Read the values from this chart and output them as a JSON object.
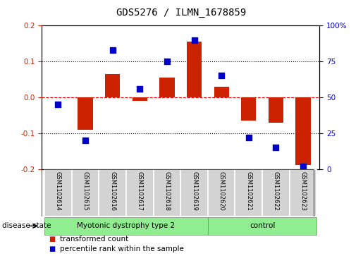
{
  "title": "GDS5276 / ILMN_1678859",
  "samples": [
    "GSM1102614",
    "GSM1102615",
    "GSM1102616",
    "GSM1102617",
    "GSM1102618",
    "GSM1102619",
    "GSM1102620",
    "GSM1102621",
    "GSM1102622",
    "GSM1102623"
  ],
  "red_bars": [
    0.0,
    -0.09,
    0.065,
    -0.01,
    0.055,
    0.155,
    0.03,
    -0.065,
    -0.07,
    -0.19
  ],
  "blue_dots_pct": [
    45,
    20,
    83,
    56,
    75,
    90,
    65,
    22,
    15,
    2
  ],
  "ylim_left": [
    -0.2,
    0.2
  ],
  "ylim_right": [
    0,
    100
  ],
  "yticks_left": [
    -0.2,
    -0.1,
    0.0,
    0.1,
    0.2
  ],
  "yticks_right": [
    0,
    25,
    50,
    75,
    100
  ],
  "ytick_labels_right": [
    "0",
    "25",
    "50",
    "75",
    "100%"
  ],
  "bar_color": "#CC2200",
  "dot_color": "#0000CC",
  "dot_size": 40,
  "bar_width": 0.55,
  "title_fontsize": 10,
  "label_fontsize": 7,
  "legend_items": [
    {
      "label": "transformed count",
      "color": "#CC2200"
    },
    {
      "label": "percentile rank within the sample",
      "color": "#0000CC"
    }
  ],
  "ylabel_left_color": "#CC2200",
  "ylabel_right_color": "#0000CC",
  "sample_box_color": "#D3D3D3",
  "disease_state_label": "disease state",
  "group1_label": "Myotonic dystrophy type 2",
  "group2_label": "control",
  "group_color": "#90EE90",
  "n_disease": 6,
  "n_control": 4
}
